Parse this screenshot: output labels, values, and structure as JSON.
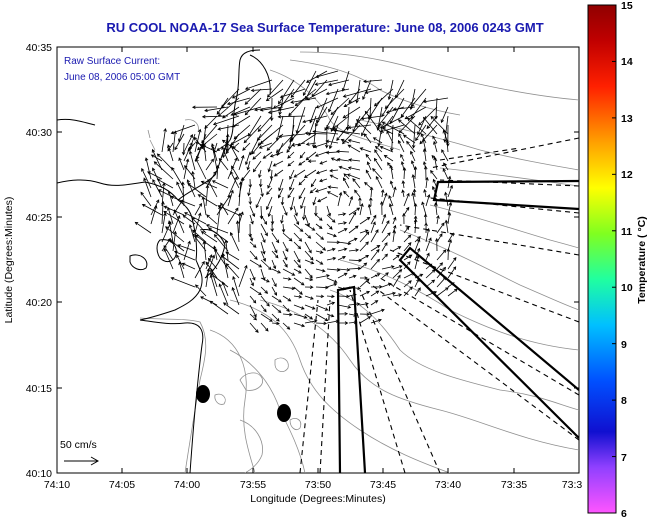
{
  "title": "RU COOL  NOAA-17  Sea Surface Temperature:  June 08, 2006 0243 GMT",
  "annotation": {
    "line1": "Raw Surface Current:",
    "line2": "June 08, 2006 05:00 GMT"
  },
  "scale_label": "50 cm/s",
  "x_axis": {
    "label": "Longitude (Degrees:Minutes)",
    "ticks": [
      "74:10",
      "74:05",
      "74:00",
      "73:55",
      "73:50",
      "73:45",
      "73:40",
      "73:35",
      "73:3"
    ]
  },
  "y_axis": {
    "label": "Latitude (Degrees:Minutes)",
    "ticks": [
      "40:35",
      "40:30",
      "40:25",
      "40:20",
      "40:15",
      "40:10"
    ]
  },
  "colorbar": {
    "label": "Temperature ( °C)",
    "ticks": [
      "15",
      "14",
      "13",
      "12",
      "11",
      "10",
      "9",
      "8",
      "7",
      "6"
    ],
    "range": [
      6,
      15
    ],
    "colors": [
      "#ff55ff",
      "#9040ff",
      "#1010d0",
      "#0050ff",
      "#00c0ff",
      "#20ffa0",
      "#80ff20",
      "#ffff00",
      "#ffa000",
      "#ff2000",
      "#c00000",
      "#900000"
    ]
  },
  "markers": [
    "black-oval",
    "black-oval"
  ],
  "colors": {
    "title": "#1a1ab0",
    "annotation": "#1a1ab0",
    "coastline": "#000000",
    "bathymetry": "#808080"
  }
}
